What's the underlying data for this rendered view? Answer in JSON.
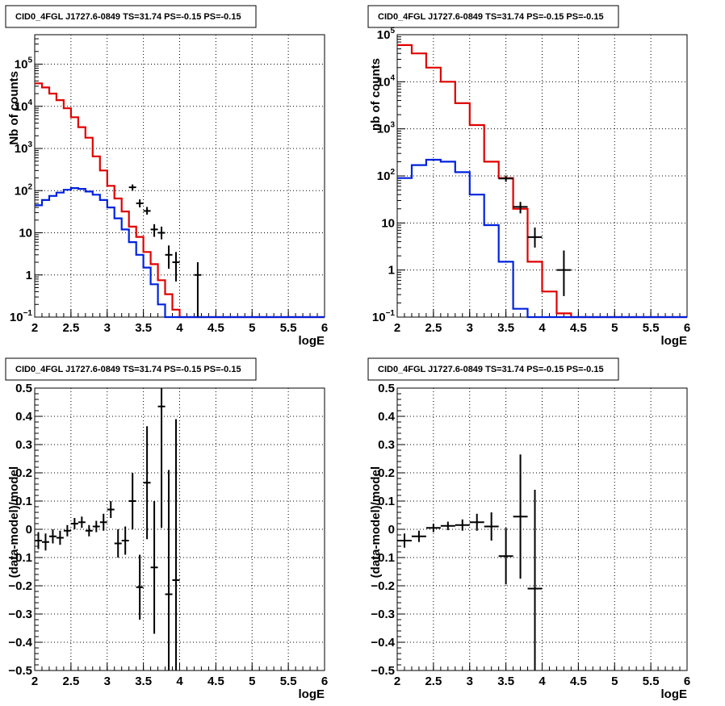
{
  "colors": {
    "data": "#000000",
    "model": "#e00000",
    "source": "#0022dd",
    "grid": "#000000"
  },
  "chart_data": [
    {
      "type": "line",
      "title": "CID0_4FGL J1727.6-0849 TS=31.74 PS=-0.15 PS=-0.15",
      "xlabel": "logE",
      "ylabel": "Nb of counts",
      "xlim": [
        2,
        6
      ],
      "ylim": [
        0.1,
        500000
      ],
      "yscale": "log",
      "grid": true,
      "xticks": [
        "2",
        "2.5",
        "3",
        "3.5",
        "4",
        "4.5",
        "5",
        "5.5",
        "6"
      ],
      "yticks": [
        {
          "v": 0.1,
          "base": "10",
          "exp": "−1"
        },
        {
          "v": 1,
          "label": "1"
        },
        {
          "v": 10,
          "label": "10"
        },
        {
          "v": 100,
          "base": "10",
          "exp": "2"
        },
        {
          "v": 1000,
          "base": "10",
          "exp": "3"
        },
        {
          "v": 10000,
          "base": "10",
          "exp": "4"
        },
        {
          "v": 100000,
          "base": "10",
          "exp": "5"
        }
      ],
      "binWidth": 0.1,
      "series": [
        {
          "name": "model",
          "style": "hist",
          "x0": 2.0,
          "values": [
            35000,
            28000,
            20000,
            14000,
            9000,
            5500,
            3200,
            1800,
            650,
            300,
            130,
            65,
            32,
            14,
            8,
            3.5,
            1.8,
            0.75,
            0.35,
            0.15,
            0.1,
            0.1,
            0.1,
            0.1,
            0.1,
            0.1,
            0.1,
            0.1,
            0.1,
            0.1,
            0.1,
            0.1,
            0.1,
            0.1,
            0.1,
            0.1,
            0.1,
            0.1,
            0.1,
            0.1
          ]
        },
        {
          "name": "source",
          "style": "hist",
          "x0": 2.0,
          "values": [
            45,
            60,
            75,
            90,
            105,
            115,
            110,
            95,
            80,
            60,
            40,
            22,
            12,
            6,
            3,
            1.5,
            0.6,
            0.2,
            0.1,
            0.1,
            0.1,
            0.1,
            0.1,
            0.1,
            0.1,
            0.1,
            0.1,
            0.1,
            0.1,
            0.1,
            0.1,
            0.1,
            0.1,
            0.1,
            0.1,
            0.1,
            0.1,
            0.1,
            0.1,
            0.1
          ]
        },
        {
          "name": "data",
          "style": "points",
          "xerr": 0.05,
          "points": [
            {
              "x": 3.35,
              "y": 120,
              "lo": 100,
              "hi": 140
            },
            {
              "x": 3.45,
              "y": 50,
              "lo": 40,
              "hi": 62
            },
            {
              "x": 3.55,
              "y": 33,
              "lo": 27,
              "hi": 41
            },
            {
              "x": 3.65,
              "y": 12,
              "lo": 8,
              "hi": 16
            },
            {
              "x": 3.75,
              "y": 10,
              "lo": 7,
              "hi": 14
            },
            {
              "x": 3.85,
              "y": 3,
              "lo": 1.4,
              "hi": 5
            },
            {
              "x": 3.95,
              "y": 2,
              "lo": 0.7,
              "hi": 3.5
            },
            {
              "x": 4.25,
              "y": 1,
              "lo": 0.1,
              "hi": 2
            }
          ]
        }
      ]
    },
    {
      "type": "line",
      "title": "CID0_4FGL J1727.6-0849 TS=31.74 PS=-0.15 PS=-0.15",
      "xlabel": "logE",
      "ylabel": "nb of counts",
      "xlim": [
        2,
        6
      ],
      "ylim": [
        0.1,
        100000
      ],
      "yscale": "log",
      "grid": true,
      "xticks": [
        "2",
        "2.5",
        "3",
        "3.5",
        "4",
        "4.5",
        "5",
        "5.5",
        "6"
      ],
      "yticks": [
        {
          "v": 0.1,
          "base": "10",
          "exp": "−1"
        },
        {
          "v": 1,
          "label": "1"
        },
        {
          "v": 10,
          "label": "10"
        },
        {
          "v": 100,
          "base": "10",
          "exp": "2"
        },
        {
          "v": 1000,
          "base": "10",
          "exp": "3"
        },
        {
          "v": 10000,
          "base": "10",
          "exp": "4"
        },
        {
          "v": 100000,
          "base": "10",
          "exp": "5"
        }
      ],
      "binWidth": 0.2,
      "series": [
        {
          "name": "model",
          "style": "hist",
          "x0": 2.0,
          "values": [
            60000,
            40000,
            20000,
            10000,
            3500,
            1200,
            200,
            90,
            20,
            1.5,
            0.35,
            0.12,
            0.1,
            0.1,
            0.1,
            0.1,
            0.1,
            0.1,
            0.1,
            0.1
          ]
        },
        {
          "name": "source",
          "style": "hist",
          "x0": 2.0,
          "values": [
            90,
            170,
            220,
            200,
            120,
            40,
            9,
            1.5,
            0.15,
            0.1,
            0.1,
            0.1,
            0.1,
            0.1,
            0.1,
            0.1,
            0.1,
            0.1,
            0.1,
            0.1
          ]
        },
        {
          "name": "data",
          "style": "points",
          "xerr": 0.1,
          "points": [
            {
              "x": 3.5,
              "y": 88,
              "lo": 75,
              "hi": 102
            },
            {
              "x": 3.7,
              "y": 22,
              "lo": 16,
              "hi": 28
            },
            {
              "x": 3.9,
              "y": 5,
              "lo": 3,
              "hi": 8
            },
            {
              "x": 4.3,
              "y": 1,
              "lo": 0.28,
              "hi": 2.6
            }
          ]
        }
      ]
    },
    {
      "type": "scatter",
      "title": "CID0_4FGL J1727.6-0849 TS=31.74 PS=-0.15 PS=-0.15",
      "xlabel": "logE",
      "ylabel": "(data-model)/model",
      "xlim": [
        2,
        6
      ],
      "ylim": [
        -0.5,
        0.5
      ],
      "yscale": "linear",
      "grid": true,
      "xticks": [
        "2",
        "2.5",
        "3",
        "3.5",
        "4",
        "4.5",
        "5",
        "5.5",
        "6"
      ],
      "yticks": [
        {
          "v": -0.5,
          "label": "−0.5"
        },
        {
          "v": -0.4,
          "label": "−0.4"
        },
        {
          "v": -0.3,
          "label": "−0.3"
        },
        {
          "v": -0.2,
          "label": "−0.2"
        },
        {
          "v": -0.1,
          "label": "−0.1"
        },
        {
          "v": 0,
          "label": "0"
        },
        {
          "v": 0.1,
          "label": "0.1"
        },
        {
          "v": 0.2,
          "label": "0.2"
        },
        {
          "v": 0.3,
          "label": "0.3"
        },
        {
          "v": 0.4,
          "label": "0.4"
        },
        {
          "v": 0.5,
          "label": "0.5"
        }
      ],
      "series": [
        {
          "name": "residuals",
          "style": "points",
          "xerr": 0.05,
          "points": [
            {
              "x": 2.05,
              "y": -0.04,
              "e": 0.03
            },
            {
              "x": 2.15,
              "y": -0.045,
              "e": 0.03
            },
            {
              "x": 2.25,
              "y": -0.025,
              "e": 0.025
            },
            {
              "x": 2.35,
              "y": -0.03,
              "e": 0.025
            },
            {
              "x": 2.45,
              "y": -0.005,
              "e": 0.02
            },
            {
              "x": 2.55,
              "y": 0.02,
              "e": 0.02
            },
            {
              "x": 2.65,
              "y": 0.025,
              "e": 0.02
            },
            {
              "x": 2.75,
              "y": -0.005,
              "e": 0.02
            },
            {
              "x": 2.85,
              "y": 0.01,
              "e": 0.02
            },
            {
              "x": 2.95,
              "y": 0.025,
              "e": 0.03
            },
            {
              "x": 3.05,
              "y": 0.07,
              "e": 0.03
            },
            {
              "x": 3.15,
              "y": -0.05,
              "e": 0.05
            },
            {
              "x": 3.25,
              "y": -0.04,
              "e": 0.05
            },
            {
              "x": 3.35,
              "y": 0.1,
              "e": 0.1
            },
            {
              "x": 3.45,
              "y": -0.205,
              "e": 0.115
            },
            {
              "x": 3.55,
              "y": 0.165,
              "e": 0.2
            },
            {
              "x": 3.65,
              "y": -0.135,
              "e": 0.235
            },
            {
              "x": 3.75,
              "y": 0.435,
              "e": 0.43
            },
            {
              "x": 3.85,
              "y": -0.23,
              "e": 0.44
            },
            {
              "x": 3.95,
              "y": -0.18,
              "e": 0.57
            }
          ]
        }
      ]
    },
    {
      "type": "scatter",
      "title": "CID0_4FGL J1727.6-0849 TS=31.74 PS=-0.15 PS=-0.15",
      "xlabel": "logE",
      "ylabel": "(data-model)/model",
      "xlim": [
        2,
        6
      ],
      "ylim": [
        -0.5,
        0.5
      ],
      "yscale": "linear",
      "grid": true,
      "xticks": [
        "2",
        "2.5",
        "3",
        "3.5",
        "4",
        "4.5",
        "5",
        "5.5",
        "6"
      ],
      "yticks": [
        {
          "v": -0.5,
          "label": "−0.5"
        },
        {
          "v": -0.4,
          "label": "−0.4"
        },
        {
          "v": -0.3,
          "label": "−0.3"
        },
        {
          "v": -0.2,
          "label": "−0.2"
        },
        {
          "v": -0.1,
          "label": "−0.1"
        },
        {
          "v": 0,
          "label": "0"
        },
        {
          "v": 0.1,
          "label": "0.1"
        },
        {
          "v": 0.2,
          "label": "0.2"
        },
        {
          "v": 0.3,
          "label": "0.3"
        },
        {
          "v": 0.4,
          "label": "0.4"
        },
        {
          "v": 0.5,
          "label": "0.5"
        }
      ],
      "series": [
        {
          "name": "residuals",
          "style": "points",
          "xerr": 0.1,
          "points": [
            {
              "x": 2.1,
              "y": -0.04,
              "e": 0.025
            },
            {
              "x": 2.3,
              "y": -0.025,
              "e": 0.02
            },
            {
              "x": 2.5,
              "y": 0.005,
              "e": 0.015
            },
            {
              "x": 2.7,
              "y": 0.012,
              "e": 0.015
            },
            {
              "x": 2.9,
              "y": 0.015,
              "e": 0.02
            },
            {
              "x": 3.1,
              "y": 0.025,
              "e": 0.03
            },
            {
              "x": 3.3,
              "y": 0.01,
              "e": 0.05
            },
            {
              "x": 3.5,
              "y": -0.095,
              "e": 0.1
            },
            {
              "x": 3.7,
              "y": 0.045,
              "e": 0.22
            },
            {
              "x": 3.9,
              "y": -0.21,
              "e": 0.35
            }
          ]
        }
      ]
    }
  ]
}
